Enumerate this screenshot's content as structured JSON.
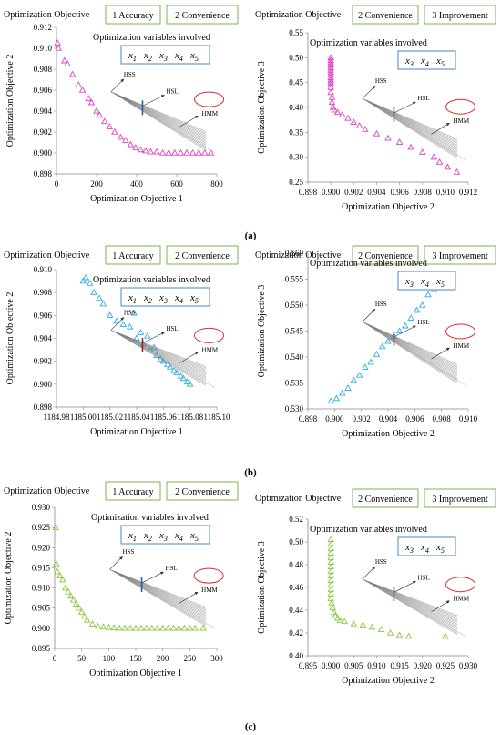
{
  "figure": {
    "panel_labels": [
      "(a)",
      "(b)",
      "(c)"
    ],
    "header_prefix": "Optimization Objective",
    "vars_label": "Optimization variables involved",
    "annotations": {
      "hss": "HSS",
      "hsl": "HSL",
      "hmm": "HMM"
    },
    "colors": {
      "a": "#e040c8",
      "b": "#2eaee8",
      "c": "#8cc63f",
      "header_border": "#7ab648",
      "vars_border": "#4a86c8",
      "hmm_ellipse": "#d9302c"
    }
  },
  "chart_data": [
    {
      "id": "a-left",
      "type": "scatter",
      "marker": "triangle",
      "objectives": [
        "1 Accuracy",
        "2 Convenience"
      ],
      "variables": [
        "x1",
        "x2",
        "x3",
        "x4",
        "x5"
      ],
      "xlabel": "Optimization Objective 1",
      "ylabel": "Optimization Objective 2",
      "xlim": [
        0,
        800
      ],
      "ylim": [
        0.898,
        0.912
      ],
      "xticks": [
        "0",
        "200",
        "400",
        "600",
        "800"
      ],
      "yticks": [
        "0.898",
        "0.900",
        "0.902",
        "0.904",
        "0.906",
        "0.908",
        "0.910",
        "0.912"
      ],
      "points": [
        [
          5,
          0.9105
        ],
        [
          10,
          0.91
        ],
        [
          40,
          0.9088
        ],
        [
          55,
          0.9085
        ],
        [
          80,
          0.9075
        ],
        [
          110,
          0.9065
        ],
        [
          130,
          0.906
        ],
        [
          160,
          0.9052
        ],
        [
          175,
          0.9048
        ],
        [
          200,
          0.904
        ],
        [
          215,
          0.9036
        ],
        [
          240,
          0.903
        ],
        [
          265,
          0.9025
        ],
        [
          290,
          0.902
        ],
        [
          320,
          0.9015
        ],
        [
          345,
          0.9012
        ],
        [
          370,
          0.9008
        ],
        [
          395,
          0.9005
        ],
        [
          420,
          0.9003
        ],
        [
          445,
          0.9002
        ],
        [
          470,
          0.9001
        ],
        [
          500,
          0.9001
        ],
        [
          530,
          0.9
        ],
        [
          560,
          0.9
        ],
        [
          590,
          0.9
        ],
        [
          620,
          0.9
        ],
        [
          650,
          0.9
        ],
        [
          680,
          0.9
        ],
        [
          710,
          0.9
        ],
        [
          740,
          0.9
        ],
        [
          770,
          0.9
        ]
      ]
    },
    {
      "id": "a-right",
      "type": "scatter",
      "marker": "triangle",
      "objectives": [
        "2 Convenience",
        "3 Improvement"
      ],
      "variables": [
        "x3",
        "x4",
        "x5"
      ],
      "xlabel": "Optimization Objective 2",
      "ylabel": "Optimization Objective 3",
      "xlim": [
        0.898,
        0.912
      ],
      "ylim": [
        0.25,
        0.55
      ],
      "xticks": [
        "0.898",
        "0.900",
        "0.902",
        "0.904",
        "0.906",
        "0.908",
        "0.910",
        "0.912"
      ],
      "yticks": [
        "0.25",
        "0.30",
        "0.35",
        "0.40",
        "0.45",
        "0.50",
        "0.55"
      ],
      "points": [
        [
          0.9,
          0.5
        ],
        [
          0.9,
          0.495
        ],
        [
          0.9,
          0.49
        ],
        [
          0.9,
          0.485
        ],
        [
          0.9,
          0.48
        ],
        [
          0.9,
          0.475
        ],
        [
          0.9,
          0.47
        ],
        [
          0.9,
          0.465
        ],
        [
          0.9,
          0.46
        ],
        [
          0.9,
          0.455
        ],
        [
          0.9,
          0.45
        ],
        [
          0.9,
          0.445
        ],
        [
          0.9,
          0.44
        ],
        [
          0.9,
          0.43
        ],
        [
          0.9001,
          0.42
        ],
        [
          0.9001,
          0.41
        ],
        [
          0.9002,
          0.4
        ],
        [
          0.9003,
          0.395
        ],
        [
          0.9006,
          0.39
        ],
        [
          0.901,
          0.385
        ],
        [
          0.9015,
          0.378
        ],
        [
          0.902,
          0.37
        ],
        [
          0.9025,
          0.363
        ],
        [
          0.903,
          0.356
        ],
        [
          0.904,
          0.347
        ],
        [
          0.905,
          0.338
        ],
        [
          0.906,
          0.33
        ],
        [
          0.907,
          0.32
        ],
        [
          0.908,
          0.31
        ],
        [
          0.909,
          0.3
        ],
        [
          0.9095,
          0.29
        ],
        [
          0.9102,
          0.28
        ],
        [
          0.911,
          0.27
        ]
      ]
    },
    {
      "id": "b-left",
      "type": "scatter",
      "marker": "triangle",
      "objectives": [
        "1 Accuracy",
        "2 Convenience"
      ],
      "variables": [
        "x1",
        "x2",
        "x3",
        "x4",
        "x5"
      ],
      "xlabel": "Optimization Objective 1",
      "ylabel": "Optimization Objective 2",
      "xlim": [
        1184.98,
        1185.1
      ],
      "ylim": [
        0.898,
        0.91
      ],
      "xticks": [
        "1184.98",
        "1185.00",
        "1185.02",
        "1185.04",
        "1185.06",
        "1185.08",
        "1185.10"
      ],
      "yticks": [
        "0.898",
        "0.900",
        "0.902",
        "0.904",
        "0.906",
        "0.908",
        "0.910"
      ],
      "points": [
        [
          1185.0,
          0.909
        ],
        [
          1185.002,
          0.9093
        ],
        [
          1185.005,
          0.9088
        ],
        [
          1185.008,
          0.908
        ],
        [
          1185.012,
          0.9075
        ],
        [
          1185.015,
          0.907
        ],
        [
          1185.02,
          0.906
        ],
        [
          1185.025,
          0.9055
        ],
        [
          1185.03,
          0.9052
        ],
        [
          1185.035,
          0.905
        ],
        [
          1185.038,
          0.9062
        ],
        [
          1185.04,
          0.904
        ],
        [
          1185.043,
          0.9045
        ],
        [
          1185.045,
          0.9035
        ],
        [
          1185.048,
          0.9042
        ],
        [
          1185.05,
          0.903
        ],
        [
          1185.053,
          0.9032
        ],
        [
          1185.055,
          0.9025
        ],
        [
          1185.058,
          0.9022
        ],
        [
          1185.06,
          0.902
        ],
        [
          1185.063,
          0.9017
        ],
        [
          1185.065,
          0.9015
        ],
        [
          1185.068,
          0.9012
        ],
        [
          1185.07,
          0.901
        ],
        [
          1185.073,
          0.9007
        ],
        [
          1185.075,
          0.9005
        ],
        [
          1185.078,
          0.9002
        ],
        [
          1185.08,
          0.9
        ]
      ]
    },
    {
      "id": "b-right",
      "type": "scatter",
      "marker": "triangle",
      "objectives": [
        "2 Convenience",
        "3 Improvement"
      ],
      "variables": [
        "x3",
        "x4",
        "x5"
      ],
      "xlabel": "Optimization Objective 2",
      "ylabel": "Optimization Objective 3",
      "xlim": [
        0.898,
        0.912
      ],
      "ylim": [
        0.53,
        0.56
      ],
      "xticks": [
        "0.898",
        "0.900",
        "0.902",
        "0.904",
        "0.906",
        "0.908",
        "0.910"
      ],
      "yticks": [
        "0.530",
        "0.535",
        "0.540",
        "0.545",
        "0.550",
        "0.555",
        "0.560"
      ],
      "points": [
        [
          0.9,
          0.5315
        ],
        [
          0.9005,
          0.532
        ],
        [
          0.901,
          0.533
        ],
        [
          0.9015,
          0.534
        ],
        [
          0.902,
          0.5355
        ],
        [
          0.9025,
          0.5365
        ],
        [
          0.903,
          0.538
        ],
        [
          0.9035,
          0.539
        ],
        [
          0.904,
          0.5405
        ],
        [
          0.9045,
          0.542
        ],
        [
          0.905,
          0.543
        ],
        [
          0.9055,
          0.544
        ],
        [
          0.906,
          0.545
        ],
        [
          0.9065,
          0.546
        ],
        [
          0.907,
          0.5475
        ],
        [
          0.9075,
          0.549
        ],
        [
          0.908,
          0.55
        ],
        [
          0.9085,
          0.552
        ],
        [
          0.909,
          0.553
        ],
        [
          0.9095,
          0.5545
        ],
        [
          0.91,
          0.554
        ]
      ]
    },
    {
      "id": "c-left",
      "type": "scatter",
      "marker": "triangle",
      "objectives": [
        "1 Accuracy",
        "2 Convenience"
      ],
      "variables": [
        "x1",
        "x2",
        "x3",
        "x4",
        "x5"
      ],
      "xlabel": "Optimization Objective 1",
      "ylabel": "Optimization Objective 2",
      "xlim": [
        0,
        300
      ],
      "ylim": [
        0.895,
        0.93
      ],
      "xticks": [
        "0",
        "50",
        "100",
        "150",
        "200",
        "250",
        "300"
      ],
      "yticks": [
        "0.895",
        "0.900",
        "0.905",
        "0.910",
        "0.915",
        "0.920",
        "0.925",
        "0.930"
      ],
      "points": [
        [
          2,
          0.925
        ],
        [
          3,
          0.916
        ],
        [
          5,
          0.914
        ],
        [
          10,
          0.913
        ],
        [
          15,
          0.912
        ],
        [
          20,
          0.91
        ],
        [
          25,
          0.909
        ],
        [
          30,
          0.908
        ],
        [
          35,
          0.907
        ],
        [
          40,
          0.906
        ],
        [
          45,
          0.905
        ],
        [
          50,
          0.904
        ],
        [
          55,
          0.903
        ],
        [
          60,
          0.902
        ],
        [
          70,
          0.901
        ],
        [
          80,
          0.9005
        ],
        [
          90,
          0.9003
        ],
        [
          100,
          0.9002
        ],
        [
          110,
          0.9001
        ],
        [
          120,
          0.9
        ],
        [
          130,
          0.9
        ],
        [
          140,
          0.9
        ],
        [
          150,
          0.9
        ],
        [
          160,
          0.9
        ],
        [
          170,
          0.9
        ],
        [
          180,
          0.9
        ],
        [
          190,
          0.9
        ],
        [
          200,
          0.9
        ],
        [
          210,
          0.9
        ],
        [
          220,
          0.9
        ],
        [
          230,
          0.9
        ],
        [
          240,
          0.9
        ],
        [
          250,
          0.9
        ],
        [
          260,
          0.9
        ],
        [
          275,
          0.9
        ]
      ]
    },
    {
      "id": "c-right",
      "type": "scatter",
      "marker": "triangle",
      "objectives": [
        "2 Convenience",
        "3 Improvement"
      ],
      "variables": [
        "x3",
        "x4",
        "x5"
      ],
      "xlabel": "Optimization Objective 2",
      "ylabel": "Optimization Objective 3",
      "xlim": [
        0.895,
        0.93
      ],
      "ylim": [
        0.4,
        0.52
      ],
      "xticks": [
        "0.895",
        "0.900",
        "0.905",
        "0.910",
        "0.915",
        "0.920",
        "0.925",
        "0.930"
      ],
      "yticks": [
        "0.40",
        "0.42",
        "0.44",
        "0.46",
        "0.48",
        "0.50",
        "0.52"
      ],
      "points": [
        [
          0.9,
          0.502
        ],
        [
          0.9,
          0.498
        ],
        [
          0.9,
          0.494
        ],
        [
          0.9,
          0.49
        ],
        [
          0.9,
          0.486
        ],
        [
          0.9,
          0.482
        ],
        [
          0.9,
          0.478
        ],
        [
          0.9,
          0.474
        ],
        [
          0.9,
          0.47
        ],
        [
          0.9,
          0.466
        ],
        [
          0.9,
          0.462
        ],
        [
          0.9,
          0.458
        ],
        [
          0.9,
          0.454
        ],
        [
          0.9,
          0.45
        ],
        [
          0.9002,
          0.446
        ],
        [
          0.9004,
          0.442
        ],
        [
          0.9007,
          0.438
        ],
        [
          0.901,
          0.435
        ],
        [
          0.9015,
          0.433
        ],
        [
          0.902,
          0.431
        ],
        [
          0.903,
          0.43
        ],
        [
          0.905,
          0.428
        ],
        [
          0.907,
          0.427
        ],
        [
          0.909,
          0.425
        ],
        [
          0.911,
          0.423
        ],
        [
          0.913,
          0.42
        ],
        [
          0.915,
          0.418
        ],
        [
          0.917,
          0.417
        ],
        [
          0.925,
          0.417
        ]
      ]
    }
  ]
}
